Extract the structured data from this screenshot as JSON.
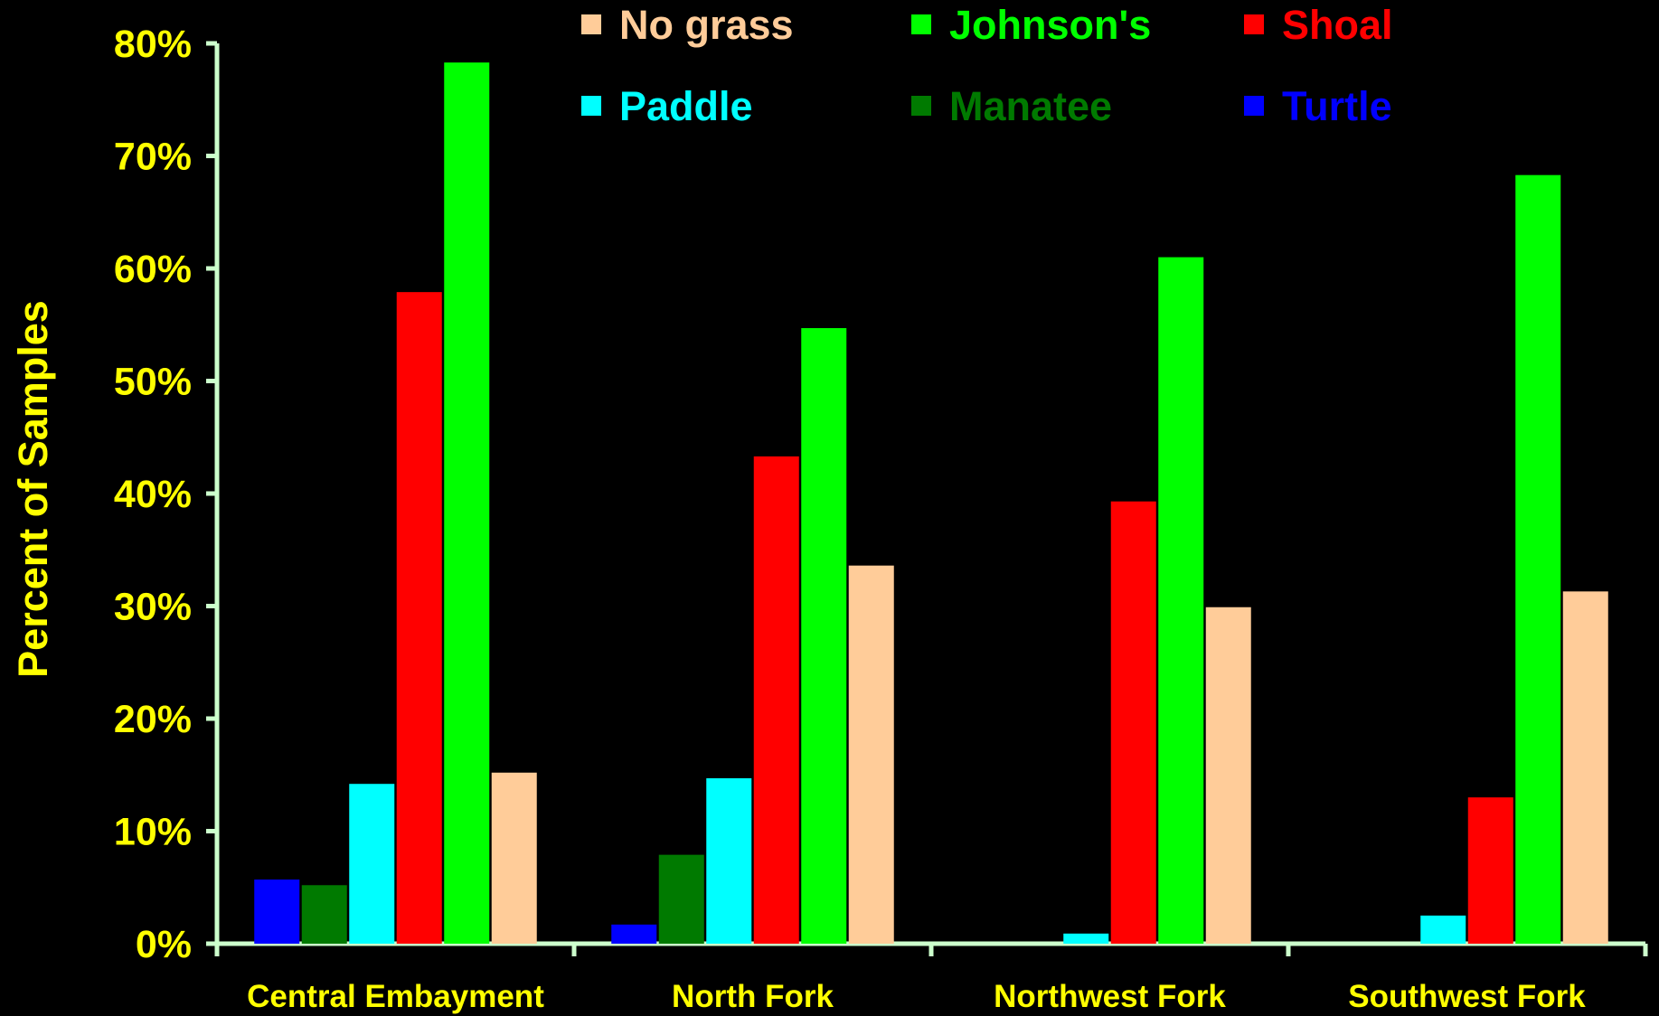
{
  "chart_data": {
    "type": "bar",
    "title": "",
    "xlabel": "",
    "ylabel": "Percent of Samples",
    "ylim": [
      0,
      80
    ],
    "yticks": [
      "0%",
      "10%",
      "20%",
      "30%",
      "40%",
      "50%",
      "60%",
      "70%",
      "80%"
    ],
    "categories": [
      "Central Embayment",
      "North Fork",
      "Northwest Fork",
      "Southwest Fork"
    ],
    "series": [
      {
        "name": "Turtle",
        "color": "#0000ff",
        "values": [
          5.7,
          1.7,
          0,
          0
        ]
      },
      {
        "name": "Manatee",
        "color": "#007a00",
        "values": [
          5.2,
          7.9,
          0,
          0
        ]
      },
      {
        "name": "Paddle",
        "color": "#00ffff",
        "values": [
          14.2,
          14.7,
          0.9,
          2.5
        ]
      },
      {
        "name": "Shoal",
        "color": "#ff0000",
        "values": [
          57.9,
          43.3,
          39.3,
          13.0
        ]
      },
      {
        "name": "Johnson's",
        "color": "#00ff00",
        "values": [
          78.3,
          54.7,
          61.0,
          68.3
        ]
      },
      {
        "name": "No grass",
        "color": "#ffcc99",
        "values": [
          15.2,
          33.6,
          29.9,
          31.3
        ]
      }
    ],
    "legend": {
      "placement": "top",
      "order": [
        "No grass",
        "Johnson's",
        "Shoal",
        "Paddle",
        "Manatee",
        "Turtle"
      ]
    },
    "grid": false,
    "colors": {
      "background": "#000000",
      "axis": "#ccffcc",
      "tick_label": "#ffff00",
      "category_label": "#ffff00",
      "ylabel": "#ffff00"
    }
  }
}
